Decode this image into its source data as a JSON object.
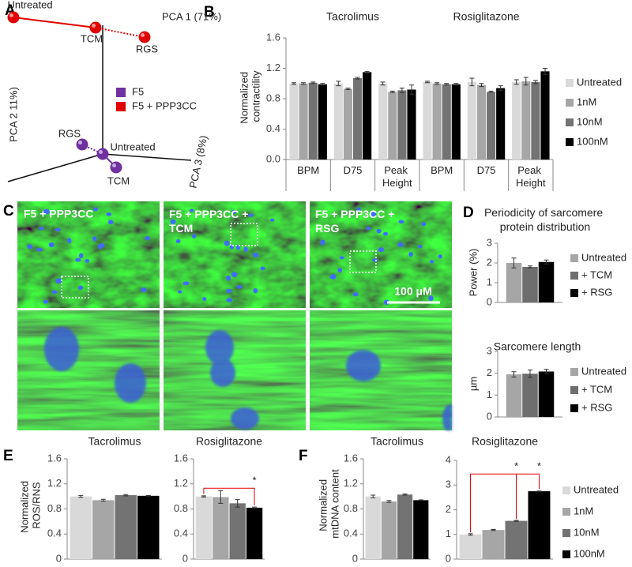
{
  "panel_labels": [
    "A",
    "B",
    "C",
    "D",
    "E",
    "F"
  ],
  "pca": {
    "axis_labels": [
      "PCA 1 (71%)",
      "PCA 2 11%)",
      "PCA 3 (8%)"
    ],
    "groups": [
      {
        "name": "F5",
        "color": "#7030a0",
        "points": [
          "RGS",
          "Untreated",
          "TCM"
        ]
      },
      {
        "name": "F5 + PPP3CC",
        "color": "#e00000",
        "points": [
          "Untreated",
          "TCM",
          "RGS"
        ]
      }
    ]
  },
  "micrographs": {
    "titles": [
      "F5 + PPP3CC",
      "F5 + PPP3CC + TCM",
      "F5 + PPP3CC + RSG"
    ],
    "scale_bar": "100 μM"
  },
  "chart_data": [
    {
      "type": "bar",
      "ylabel": "Normalized contractility",
      "ylim": [
        0,
        1.6
      ],
      "yticks": [
        {
          "value": 0,
          "label": "0.0"
        },
        0.4,
        0.8,
        1.2,
        1.6
      ],
      "series": [
        {
          "name": "Untreated",
          "color": "#d9d9d9"
        },
        {
          "name": "1nM",
          "color": "#a6a6a6"
        },
        {
          "name": "10nM",
          "color": "#737373"
        },
        {
          "name": "100nM",
          "color": "#000000"
        }
      ],
      "panels": [
        {
          "title": "Tacrolimus",
          "categories": [
            "BPM",
            "D75",
            "Peak Height"
          ],
          "values": [
            [
              1.0,
              1.0,
              1.0
            ],
            [
              1.0,
              0.93,
              0.89
            ],
            [
              1.01,
              1.07,
              0.91
            ],
            [
              0.99,
              1.15,
              0.92
            ]
          ],
          "errors": [
            [
              0.01,
              0.03,
              0.02
            ],
            [
              0.01,
              0.01,
              0.01
            ],
            [
              0.01,
              0.01,
              0.03
            ],
            [
              0.01,
              0.01,
              0.06
            ]
          ]
        },
        {
          "title": "Rosiglitazone",
          "categories": [
            "BPM",
            "D75",
            "Peak Height"
          ],
          "values": [
            [
              1.02,
              1.02,
              1.02
            ],
            [
              1.0,
              0.98,
              1.03
            ],
            [
              0.99,
              0.89,
              1.02
            ],
            [
              0.99,
              0.94,
              1.16
            ]
          ],
          "errors": [
            [
              0.01,
              0.05,
              0.03
            ],
            [
              0.01,
              0.02,
              0.05
            ],
            [
              0.01,
              0.01,
              0.02
            ],
            [
              0.01,
              0.03,
              0.04
            ]
          ]
        }
      ]
    },
    {
      "type": "bar",
      "title": "Periodicity of sarcomere protein distribution",
      "ylabel": "Power (%)",
      "ylim": [
        0,
        3
      ],
      "yticks": [
        0,
        1,
        2,
        3
      ],
      "series": [
        {
          "name": "Untreated",
          "color": "#a6a6a6"
        },
        {
          "name": "+ TCM",
          "color": "#6e6e6e"
        },
        {
          "name": "+ RSG",
          "color": "#000000"
        }
      ],
      "panels": [
        {
          "values": [
            [
              2.0
            ],
            [
              1.8
            ],
            [
              2.05
            ]
          ],
          "errors": [
            [
              0.25
            ],
            [
              0.05
            ],
            [
              0.1
            ]
          ]
        }
      ]
    },
    {
      "type": "bar",
      "title": "Sarcomere length",
      "ylabel": "µm",
      "ylim": [
        0,
        3
      ],
      "yticks": [
        0,
        1,
        2,
        3
      ],
      "series": [
        {
          "name": "Untreated",
          "color": "#a6a6a6"
        },
        {
          "name": "+ TCM",
          "color": "#6e6e6e"
        },
        {
          "name": "+ RSG",
          "color": "#000000"
        }
      ],
      "panels": [
        {
          "values": [
            [
              1.95
            ],
            [
              1.98
            ],
            [
              2.08
            ]
          ],
          "errors": [
            [
              0.12
            ],
            [
              0.17
            ],
            [
              0.1
            ]
          ]
        }
      ]
    },
    {
      "type": "bar",
      "ylabel": "Normalized ROS/RNS",
      "series": [
        {
          "color": "#d9d9d9"
        },
        {
          "color": "#a6a6a6"
        },
        {
          "color": "#737373"
        },
        {
          "color": "#000000"
        }
      ],
      "panels": [
        {
          "title": "Tacrolimus",
          "ylim": [
            0,
            1.6
          ],
          "yticks": [
            0,
            0.4,
            0.8,
            1.2,
            1.6
          ],
          "values": [
            [
              1.0
            ],
            [
              0.94
            ],
            [
              1.02
            ],
            [
              1.01
            ]
          ],
          "errors": [
            [
              0.015
            ],
            [
              0.015
            ],
            [
              0.01
            ],
            [
              0.005
            ]
          ]
        },
        {
          "title": "Rosiglitazone",
          "ylim": [
            0,
            1.6
          ],
          "yticks": [
            0,
            0.4,
            0.8,
            1.2,
            1.6
          ],
          "values": [
            [
              1.0
            ],
            [
              0.99
            ],
            [
              0.89
            ],
            [
              0.82
            ]
          ],
          "errors": [
            [
              0.01
            ],
            [
              0.1
            ],
            [
              0.06
            ],
            [
              0.01
            ]
          ],
          "annotations": [
            "*"
          ]
        }
      ]
    },
    {
      "type": "bar",
      "ylabel": "Normalized mtDNA content",
      "series": [
        {
          "name": "Untreated",
          "color": "#d9d9d9"
        },
        {
          "name": "1nM",
          "color": "#a6a6a6"
        },
        {
          "name": "10nM",
          "color": "#737373"
        },
        {
          "name": "100nM",
          "color": "#000000"
        }
      ],
      "panels": [
        {
          "title": "Tacrolimus",
          "ylim": [
            0,
            1.6
          ],
          "yticks": [
            0,
            0.4,
            0.8,
            1.2,
            1.6
          ],
          "values": [
            [
              1.0
            ],
            [
              0.92
            ],
            [
              1.03
            ],
            [
              0.94
            ]
          ],
          "errors": [
            [
              0.02
            ],
            [
              0.015
            ],
            [
              0.01
            ],
            [
              0.005
            ]
          ]
        },
        {
          "title": "Rosiglitazone",
          "ylim": [
            0,
            4
          ],
          "yticks": [
            0,
            1,
            2,
            3,
            4
          ],
          "values": [
            [
              1.0
            ],
            [
              1.18
            ],
            [
              1.55
            ],
            [
              2.75
            ]
          ],
          "errors": [
            [
              0.03
            ],
            [
              0.02
            ],
            [
              0.02
            ],
            [
              0.01
            ]
          ],
          "annotations": [
            "*",
            "*"
          ]
        }
      ]
    }
  ]
}
